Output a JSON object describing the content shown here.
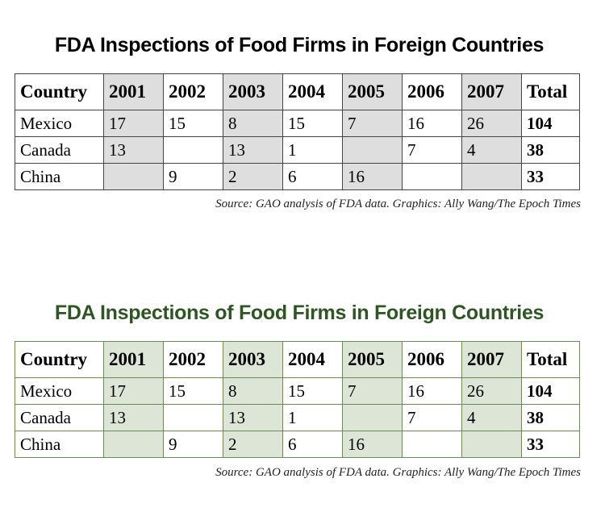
{
  "panels": [
    {
      "title": "FDA Inspections of Food Firms in Foreign Countries",
      "headers": [
        "Country",
        "2001",
        "2002",
        "2003",
        "2004",
        "2005",
        "2006",
        "2007",
        "Total"
      ],
      "rows": [
        [
          "Mexico",
          "17",
          "15",
          "8",
          "15",
          "7",
          "16",
          "26",
          "104"
        ],
        [
          "Canada",
          "13",
          "",
          "13",
          "1",
          "",
          "7",
          "4",
          "38"
        ],
        [
          "China",
          "",
          "9",
          "2",
          "6",
          "16",
          "",
          "",
          "33"
        ]
      ],
      "source": "Source: GAO analysis of FDA data. Graphics: Ally Wang/The Epoch Times",
      "title_color": "#000000",
      "shade_color": "#dedede"
    },
    {
      "title": "FDA Inspections of Food Firms in Foreign Countries",
      "headers": [
        "Country",
        "2001",
        "2002",
        "2003",
        "2004",
        "2005",
        "2006",
        "2007",
        "Total"
      ],
      "rows": [
        [
          "Mexico",
          "17",
          "15",
          "8",
          "15",
          "7",
          "16",
          "26",
          "104"
        ],
        [
          "Canada",
          "13",
          "",
          "13",
          "1",
          "",
          "7",
          "4",
          "38"
        ],
        [
          "China",
          "",
          "9",
          "2",
          "6",
          "16",
          "",
          "",
          "33"
        ]
      ],
      "source": "Source: GAO analysis of FDA data. Graphics: Ally Wang/The Epoch Times",
      "title_color": "#2e5523",
      "shade_color": "#dde6d6"
    }
  ]
}
